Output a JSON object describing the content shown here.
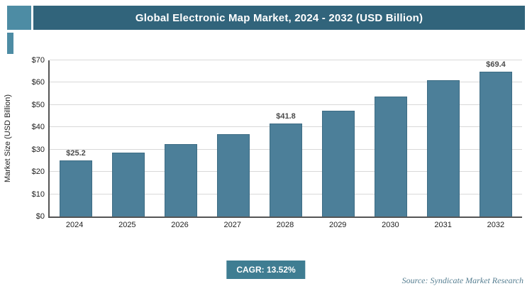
{
  "title": "Global Electronic Map Market, 2024 - 2032 (USD Billion)",
  "footer": {
    "cagr_label": "CAGR: 13.52%",
    "source": "Source: Syndicate Market Research"
  },
  "colors": {
    "banner": "#31647b",
    "accent": "#4d8ca4",
    "bar": "#4c7f99",
    "badge": "#3f7d92",
    "grid": "#d9d9d9",
    "axis": "#555555",
    "source_text": "#567e91"
  },
  "chart_data": {
    "type": "bar",
    "title": "Global Electronic Map Market, 2024 - 2032 (USD Billion)",
    "categories": [
      "2024",
      "2025",
      "2026",
      "2027",
      "2028",
      "2029",
      "2030",
      "2031",
      "2032"
    ],
    "values": [
      25.2,
      28.6,
      32.5,
      36.9,
      41.8,
      47.5,
      53.9,
      61.2,
      69.4
    ],
    "data_labels": [
      "$25.2",
      "",
      "",
      "",
      "$41.8",
      "",
      "",
      "",
      "$69.4"
    ],
    "xlabel": "",
    "ylabel": "Market Size (USD Billion)",
    "ylim": [
      0,
      70
    ],
    "ytick_step": 10,
    "ytick_prefix": "$",
    "grid": true,
    "legend": false
  }
}
